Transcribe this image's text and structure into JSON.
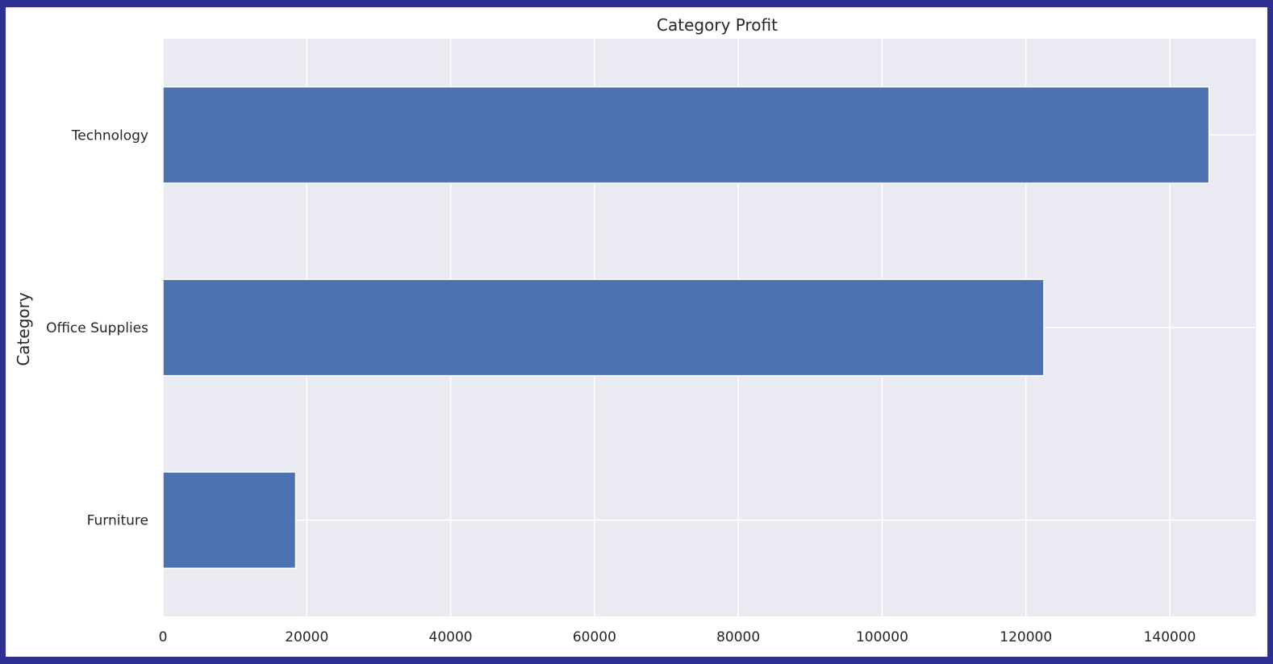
{
  "chart_data": {
    "type": "bar",
    "orientation": "horizontal",
    "title": "Category Profit",
    "ylabel": "Category",
    "xlabel": "",
    "categories": [
      "Furniture",
      "Office Supplies",
      "Technology"
    ],
    "values": [
      18451,
      122491,
      145455
    ],
    "xlim": [
      0,
      152000
    ],
    "xticks": [
      0,
      20000,
      40000,
      60000,
      80000,
      100000,
      120000,
      140000
    ],
    "grid": true,
    "legend": "none",
    "colors": {
      "bar": "#4c72b0",
      "plot_background": "#eaeaf2",
      "grid": "#ffffff",
      "frame_border": "#2e3192"
    }
  }
}
